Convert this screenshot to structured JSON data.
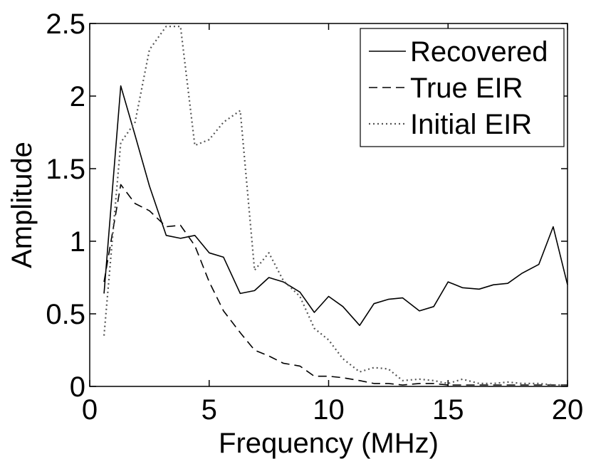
{
  "chart_data": {
    "type": "line",
    "xlabel": "Frequency (MHz)",
    "ylabel": "Amplitude",
    "xlim": [
      0,
      20
    ],
    "ylim": [
      0,
      2.5
    ],
    "x_ticks": [
      0,
      5,
      10,
      15,
      20
    ],
    "x_tick_labels": [
      "0",
      "5",
      "10",
      "15",
      "20"
    ],
    "y_ticks": [
      0,
      0.5,
      1,
      1.5,
      2,
      2.5
    ],
    "y_tick_labels": [
      "0",
      "0.5",
      "1",
      "1.5",
      "2",
      "2.5"
    ],
    "grid": false,
    "legend": "top-right",
    "series": [
      {
        "name": "Recovered",
        "style": "solid",
        "color": "#000000",
        "x": [
          0.6,
          1.3,
          1.9,
          2.5,
          3.2,
          3.8,
          4.4,
          5.0,
          5.6,
          6.3,
          6.9,
          7.5,
          8.1,
          8.8,
          9.4,
          10.0,
          10.6,
          11.3,
          11.9,
          12.5,
          13.1,
          13.8,
          14.4,
          15.0,
          15.6,
          16.3,
          16.9,
          17.5,
          18.1,
          18.8,
          19.4,
          20.0
        ],
        "y": [
          0.64,
          2.07,
          1.73,
          1.38,
          1.04,
          1.02,
          1.04,
          0.92,
          0.89,
          0.64,
          0.66,
          0.75,
          0.72,
          0.65,
          0.51,
          0.62,
          0.55,
          0.42,
          0.57,
          0.6,
          0.61,
          0.52,
          0.55,
          0.72,
          0.68,
          0.67,
          0.7,
          0.71,
          0.78,
          0.84,
          1.1,
          0.7
        ]
      },
      {
        "name": "True EIR",
        "style": "dashed",
        "color": "#000000",
        "x": [
          0.6,
          1.3,
          1.9,
          2.5,
          3.2,
          3.8,
          4.4,
          5.0,
          5.6,
          6.3,
          6.9,
          7.5,
          8.1,
          8.8,
          9.4,
          10.0,
          10.6,
          11.3,
          11.9,
          12.5,
          13.1,
          13.8,
          14.4,
          15.0,
          15.6,
          16.3,
          16.9,
          17.5,
          18.1,
          18.8,
          19.4,
          20.0
        ],
        "y": [
          0.72,
          1.39,
          1.26,
          1.21,
          1.1,
          1.11,
          0.97,
          0.72,
          0.52,
          0.37,
          0.25,
          0.21,
          0.16,
          0.14,
          0.07,
          0.07,
          0.06,
          0.04,
          0.02,
          0.02,
          0.01,
          0.02,
          0.02,
          0.01,
          0.01,
          0.01,
          0.01,
          0.01,
          0.01,
          0.01,
          0.01,
          0.01
        ]
      },
      {
        "name": "Initial EIR",
        "style": "dotted",
        "color": "#555555",
        "x": [
          0.6,
          1.3,
          1.9,
          2.5,
          3.2,
          3.8,
          4.4,
          5.0,
          5.6,
          6.3,
          6.9,
          7.5,
          8.1,
          8.8,
          9.4,
          10.0,
          10.6,
          11.3,
          11.9,
          12.5,
          13.1,
          13.8,
          14.4,
          15.0,
          15.6,
          16.3,
          16.9,
          17.5,
          18.1,
          18.8,
          19.4,
          20.0
        ],
        "y": [
          0.35,
          1.68,
          1.82,
          2.32,
          2.48,
          2.48,
          1.66,
          1.7,
          1.82,
          1.9,
          0.8,
          0.92,
          0.73,
          0.62,
          0.4,
          0.32,
          0.19,
          0.1,
          0.13,
          0.12,
          0.04,
          0.05,
          0.04,
          0.02,
          0.05,
          0.02,
          0.02,
          0.03,
          0.02,
          0.02,
          0.01,
          0.01
        ]
      }
    ]
  }
}
